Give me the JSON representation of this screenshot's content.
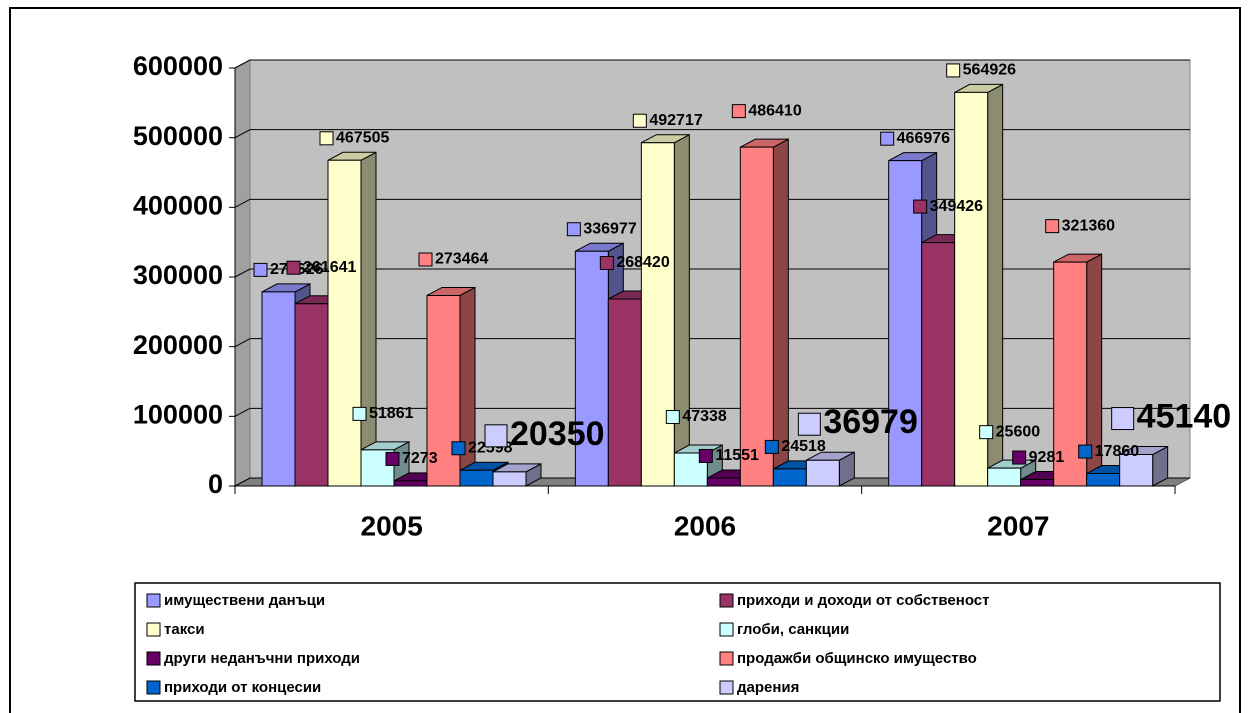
{
  "chart_data": {
    "type": "bar",
    "categories": [
      "2005",
      "2006",
      "2007"
    ],
    "series": [
      {
        "name": "имуществени данъци",
        "color": "#9999ff",
        "values": [
          278626,
          336977,
          466976
        ]
      },
      {
        "name": "приходи и доходи от собственост",
        "color": "#993366",
        "values": [
          261641,
          268420,
          349426
        ]
      },
      {
        "name": "такси",
        "color": "#ffffcc",
        "values": [
          467505,
          492717,
          564926
        ]
      },
      {
        "name": "глоби, санкции",
        "color": "#ccffff",
        "values": [
          51861,
          47338,
          25600
        ]
      },
      {
        "name": "други неданъчни приходи",
        "color": "#660066",
        "values": [
          7273,
          11551,
          9281
        ]
      },
      {
        "name": "продажби общинско имущество",
        "color": "#ff8080",
        "values": [
          273464,
          486410,
          321360
        ]
      },
      {
        "name": "приходи от концесии",
        "color": "#0066cc",
        "values": [
          22598,
          24518,
          17860
        ]
      },
      {
        "name": "дарения",
        "color": "#ccccff",
        "values": [
          20350,
          36979,
          45140
        ]
      }
    ],
    "ylim": [
      0,
      600000
    ],
    "yticks": [
      0,
      100000,
      200000,
      300000,
      400000,
      500000,
      600000
    ],
    "grid": true
  }
}
